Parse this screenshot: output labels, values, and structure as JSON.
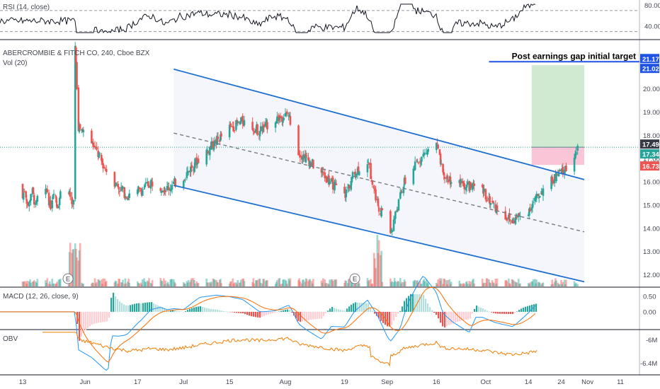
{
  "chart_data": {
    "type": "candlestick",
    "title": "ABERCROMBIE & FITCH CO, 240, Cboe BZX",
    "volume_label": "Vol (20)",
    "annotation": "Post earnings gap initial target",
    "x_tick_labels": [
      "13",
      "Jun",
      "17",
      "Jul",
      "15",
      "Aug",
      "19",
      "Sep",
      "16",
      "Oct",
      "14",
      "24",
      "Nov",
      "11"
    ],
    "x_range": [
      "2019-05-13",
      "2019-11-11"
    ],
    "y_tick_labels": [
      "12.00",
      "13.00",
      "14.00",
      "15.00",
      "16.00",
      "17.00",
      "18.00",
      "19.00",
      "20.00",
      "21.02"
    ],
    "ylim": [
      11.5,
      22.0
    ],
    "price_tags": [
      {
        "value": "21.17",
        "color": "#1e53e5"
      },
      {
        "value": "21.02",
        "color": "#1e53e5"
      },
      {
        "value": "17.49",
        "color": "#363a45"
      },
      {
        "value": "17.34",
        "color": "#26a69a"
      },
      {
        "value": "16.73",
        "color": "#ef5350"
      }
    ],
    "price_path": [
      [
        "2019-05-29",
        21.9
      ],
      [
        "2019-05-30",
        18.4
      ],
      [
        "2019-06-03",
        17.7
      ],
      [
        "2019-06-07",
        16.6
      ],
      [
        "2019-06-11",
        15.8
      ],
      [
        "2019-06-14",
        15.4
      ],
      [
        "2019-06-18",
        15.6
      ],
      [
        "2019-06-21",
        16.0
      ],
      [
        "2019-06-26",
        15.7
      ],
      [
        "2019-07-01",
        16.2
      ],
      [
        "2019-07-05",
        16.9
      ],
      [
        "2019-07-10",
        17.6
      ],
      [
        "2019-07-15",
        18.3
      ],
      [
        "2019-07-19",
        18.6
      ],
      [
        "2019-07-24",
        18.2
      ],
      [
        "2019-07-29",
        18.7
      ],
      [
        "2019-08-02",
        18.9
      ],
      [
        "2019-08-05",
        17.3
      ],
      [
        "2019-08-09",
        16.8
      ],
      [
        "2019-08-14",
        16.1
      ],
      [
        "2019-08-19",
        15.4
      ],
      [
        "2019-08-22",
        16.4
      ],
      [
        "2019-08-26",
        16.9
      ],
      [
        "2019-08-29",
        15.1
      ],
      [
        "2019-09-02",
        13.8
      ],
      [
        "2019-09-06",
        15.9
      ],
      [
        "2019-09-11",
        17.0
      ],
      [
        "2019-09-16",
        17.7
      ],
      [
        "2019-09-18",
        16.2
      ],
      [
        "2019-09-24",
        15.9
      ],
      [
        "2019-09-30",
        15.6
      ],
      [
        "2019-10-04",
        14.9
      ],
      [
        "2019-10-09",
        14.3
      ],
      [
        "2019-10-14",
        14.8
      ],
      [
        "2019-10-18",
        15.6
      ],
      [
        "2019-10-23",
        16.3
      ],
      [
        "2019-10-25",
        16.5
      ],
      [
        "2019-10-29",
        17.34
      ]
    ],
    "channel": {
      "upper": [
        [
          "2019-06-28",
          20.85
        ],
        [
          "2019-10-31",
          16.1
        ]
      ],
      "middle": [
        [
          "2019-06-28",
          18.1
        ],
        [
          "2019-10-31",
          13.85
        ]
      ],
      "lower": [
        [
          "2019-06-28",
          15.85
        ],
        [
          "2019-10-31",
          11.7
        ]
      ]
    },
    "target_line": {
      "value": 21.17,
      "from": "2019-10-02",
      "to": "2019-11-12"
    },
    "position": {
      "from": "2019-10-15",
      "to": "2019-10-31",
      "entry": 17.49,
      "target": 21.02,
      "stop": 16.73
    },
    "earnings_markers": [
      {
        "date": "2019-05-29",
        "label": "E"
      },
      {
        "date": "2019-08-28",
        "label": "E"
      }
    ],
    "indicators": [
      {
        "name": "RSI (14, close)",
        "ticks": [
          "80.00",
          "40.00"
        ],
        "range": [
          20,
          90
        ]
      },
      {
        "name": "MACD (12, 26, close, 9)",
        "ticks": [
          "0.50",
          "0.00"
        ],
        "range": [
          -0.55,
          0.75
        ]
      },
      {
        "name": "OBV",
        "ticks": [
          "-6M",
          "-6.4M"
        ],
        "range": [
          -6.55,
          -5.85
        ]
      }
    ],
    "colors": {
      "up": "#26a69a",
      "down": "#ef5350",
      "channel": "#1e6fd0",
      "target": "#1e53e5",
      "rsi": "#131722",
      "macd": "#2196f3",
      "signal": "#ff6d00",
      "obv": "#f57c00"
    }
  }
}
